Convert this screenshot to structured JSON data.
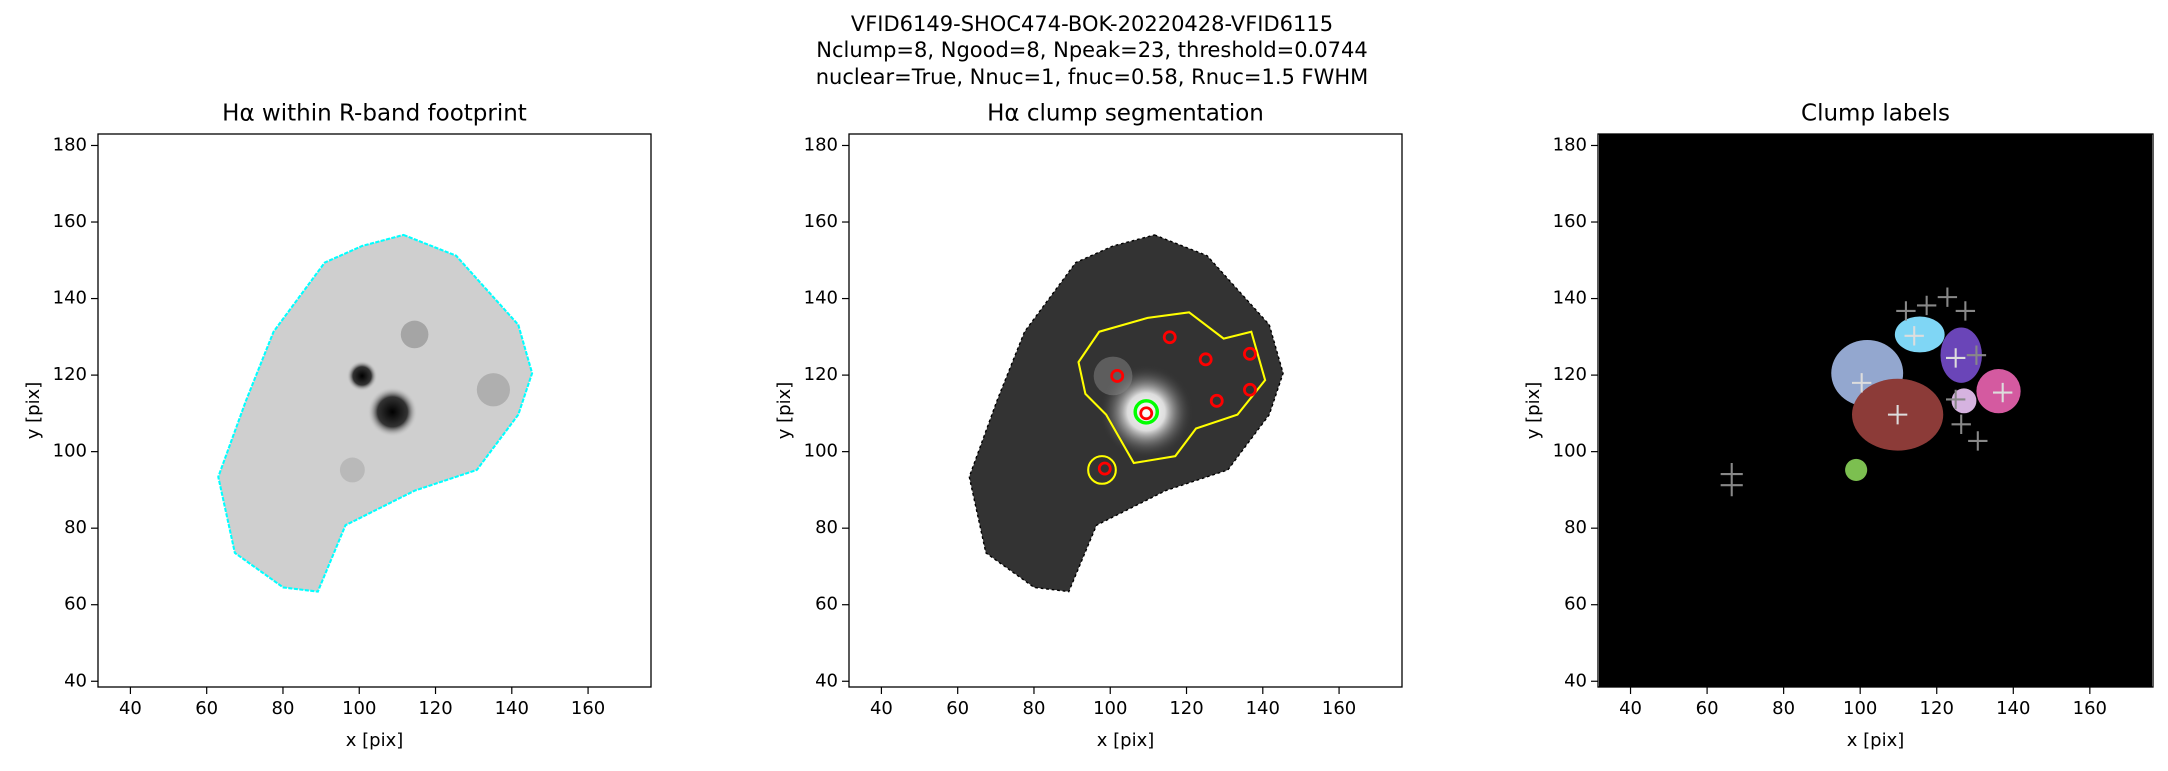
{
  "figure_title": [
    "VFID6149-SHOC474-BOK-20220428-VFID6115",
    "Nclump=8, Ngood=8, Npeak=23, threshold=0.0744",
    "nuclear=True, Nnuc=1, fnuc=0.58, Rnuc=1.5 FWHM"
  ],
  "chart_data": [
    {
      "type": "image",
      "title": "Hα within R-band footprint",
      "xlabel": "x [pix]",
      "ylabel": "y [pix]",
      "xlim": [
        31.5,
        176.5
      ],
      "ylim": [
        38.5,
        183
      ],
      "xticks": [
        40,
        60,
        80,
        100,
        120,
        140,
        160
      ],
      "yticks": [
        40,
        60,
        80,
        100,
        120,
        140,
        160,
        180
      ]
    },
    {
      "type": "image",
      "title": "Hα clump segmentation",
      "xlabel": "x [pix]",
      "ylabel": "y [pix]",
      "xlim": [
        31.5,
        176.5
      ],
      "ylim": [
        38.5,
        183
      ],
      "xticks": [
        40,
        60,
        80,
        100,
        120,
        140,
        160
      ],
      "yticks": [
        40,
        60,
        80,
        100,
        120,
        140,
        160,
        180
      ]
    },
    {
      "type": "image",
      "title": "Clump labels",
      "xlabel": "x [pix]",
      "ylabel": "y [pix]",
      "xlim": [
        31.5,
        176.5
      ],
      "ylim": [
        38.5,
        183
      ],
      "xticks": [
        40,
        60,
        80,
        100,
        120,
        140,
        160
      ],
      "yticks": [
        40,
        60,
        80,
        100,
        120,
        140,
        160,
        180
      ]
    }
  ]
}
